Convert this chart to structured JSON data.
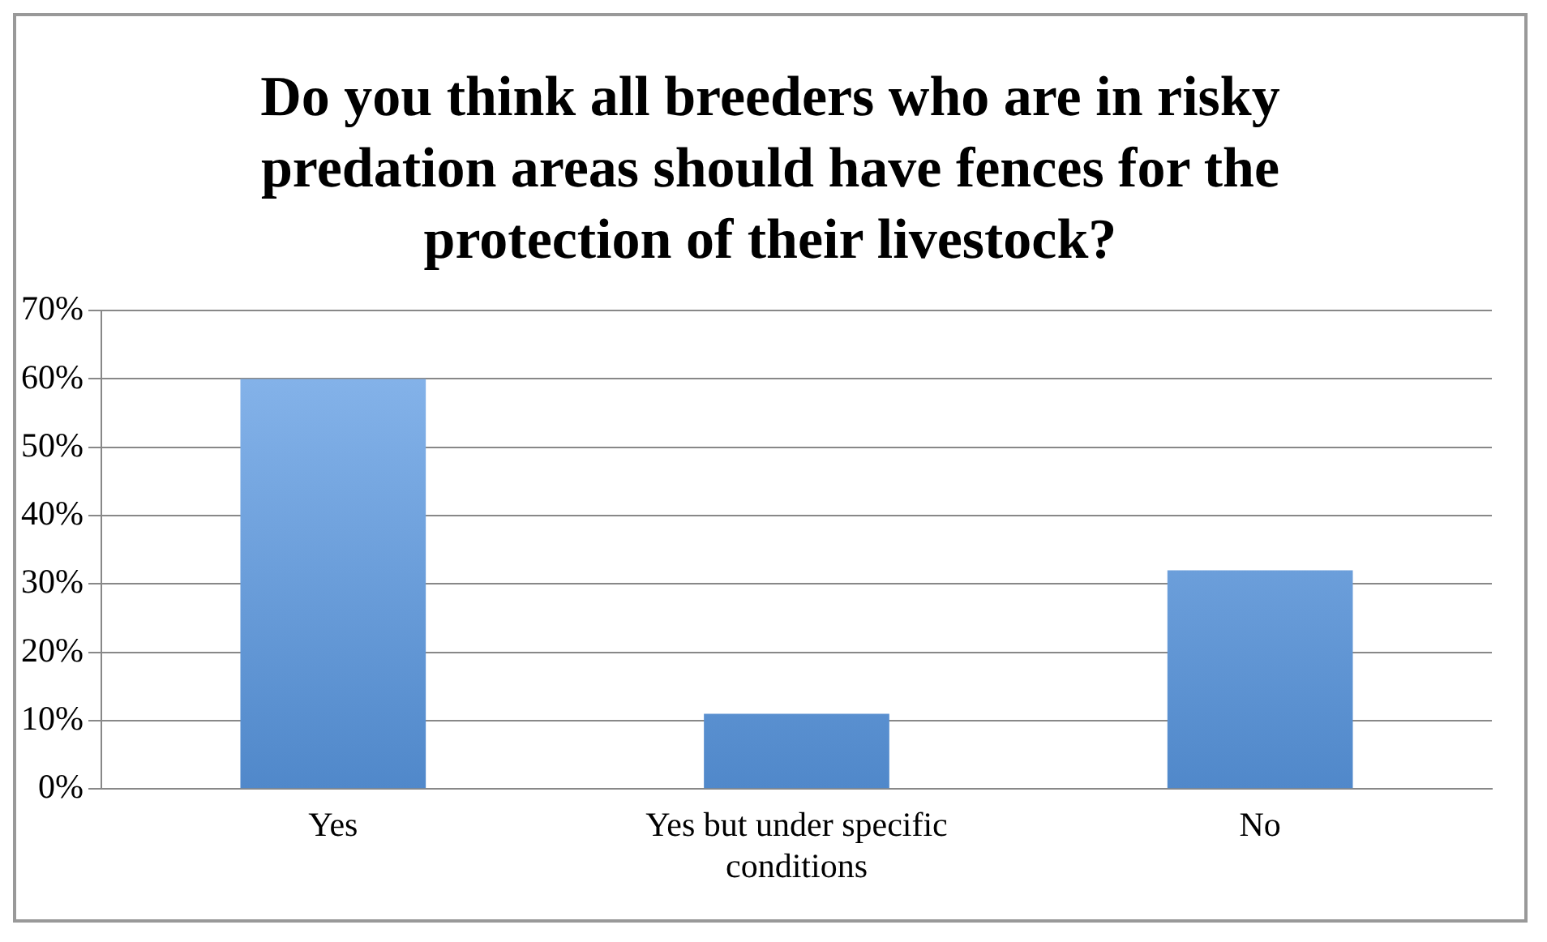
{
  "chart_data": {
    "type": "bar",
    "title": "Do you think all breeders who are in risky predation areas should have fences for the protection of their livestock?",
    "categories": [
      "Yes",
      "Yes but under specific conditions",
      "No"
    ],
    "values": [
      60,
      11,
      32
    ],
    "color": "#5b9be6",
    "ylim": [
      0,
      70
    ],
    "yticks": [
      {
        "value": 0,
        "label": "0%"
      },
      {
        "value": 10,
        "label": "10%"
      },
      {
        "value": 20,
        "label": "20%"
      },
      {
        "value": 30,
        "label": "30%"
      },
      {
        "value": 40,
        "label": "40%"
      },
      {
        "value": 50,
        "label": "50%"
      },
      {
        "value": 60,
        "label": "60%"
      },
      {
        "value": 70,
        "label": "70%"
      }
    ],
    "grid": "y",
    "legend": false
  }
}
